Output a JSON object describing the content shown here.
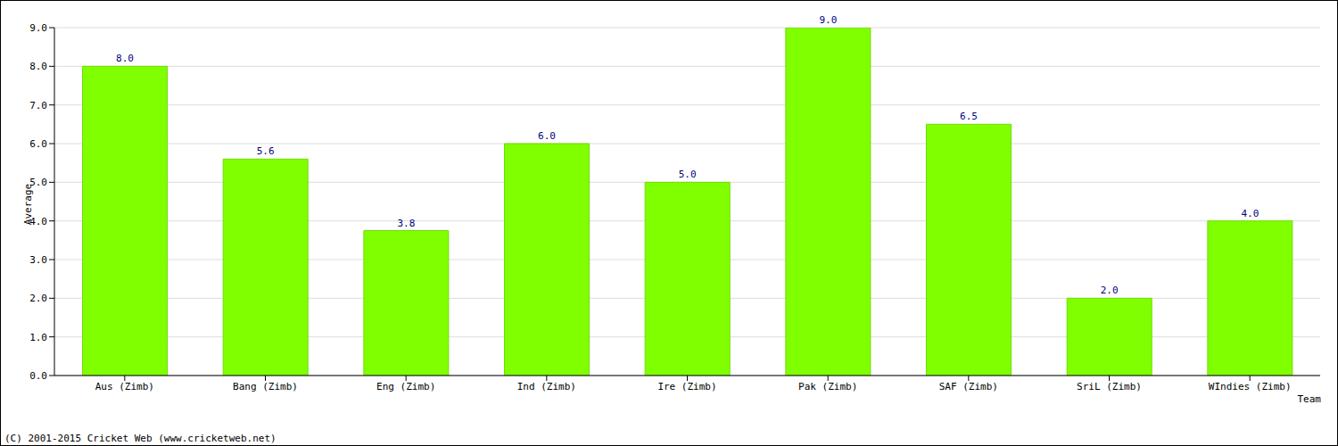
{
  "chart_data": {
    "type": "bar",
    "x_label": "Team",
    "y_label": "Average",
    "annotations": [
      "(C) 2001-2015 Cricket Web (www.cricketweb.net)"
    ],
    "categories": [
      "Aus (Zimb)",
      "Bang (Zimb)",
      "Eng (Zimb)",
      "Ind (Zimb)",
      "Ire (Zimb)",
      "Pak (Zimb)",
      "SAF (Zimb)",
      "SriL (Zimb)",
      "WIndies (Zimb)"
    ],
    "values": [
      8,
      5.6,
      3.75,
      6,
      5,
      9,
      6.5,
      2,
      4
    ],
    "value_labels": [
      "8.0",
      "5.6",
      "3.8",
      "6.0",
      "5.0",
      "9.0",
      "6.5",
      "2.0",
      "4.0"
    ],
    "color": "#80ff00",
    "ylim": [
      0,
      9
    ],
    "yticks": [
      {
        "value": 0,
        "label": "0.0"
      },
      {
        "value": 1,
        "label": "1.0"
      },
      {
        "value": 2,
        "label": "2.0"
      },
      {
        "value": 3,
        "label": "3.0"
      },
      {
        "value": 4,
        "label": "4.0"
      },
      {
        "value": 5,
        "label": "5.0"
      },
      {
        "value": 6,
        "label": "6.0"
      },
      {
        "value": 7,
        "label": "7.0"
      },
      {
        "value": 8,
        "label": "8.0"
      },
      {
        "value": 9,
        "label": "9.0"
      }
    ],
    "grid": true,
    "data_labels": true
  }
}
